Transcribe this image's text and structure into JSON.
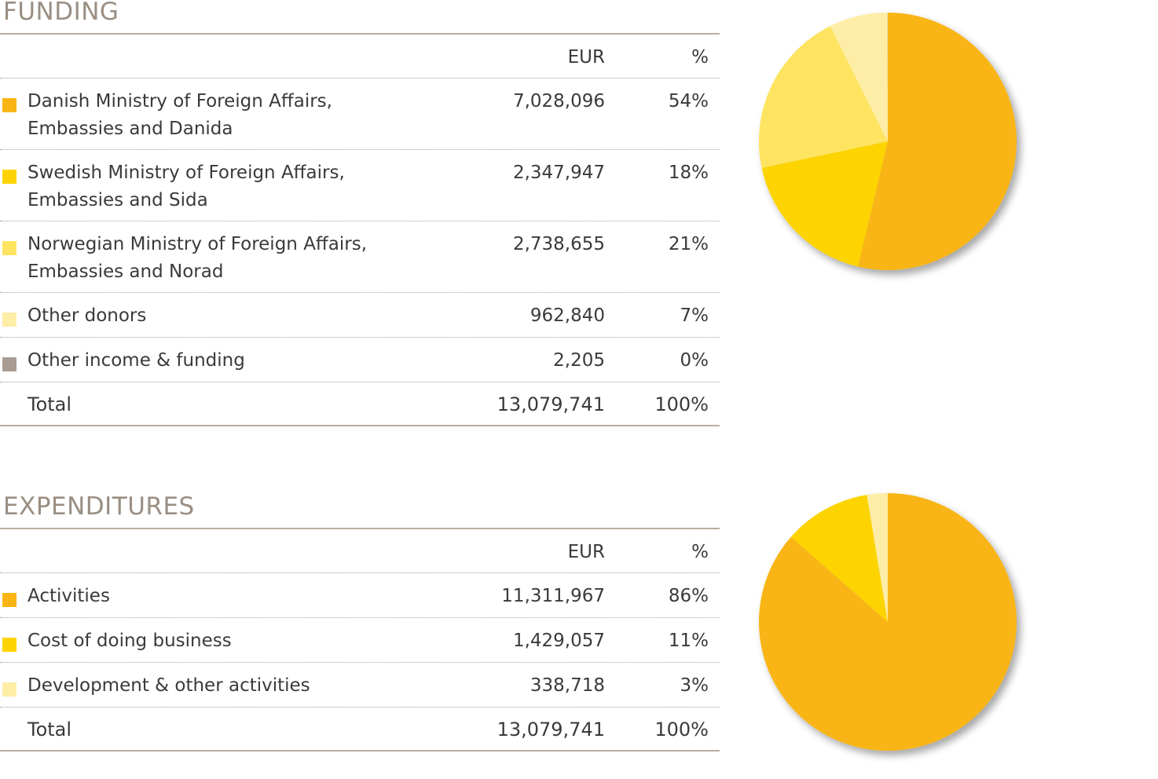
{
  "funding": {
    "title": "FUNDING",
    "headers": {
      "eur": "EUR",
      "pct": "%"
    },
    "rows": [
      {
        "label1": "Danish Ministry of Foreign Affairs,",
        "label2": "Embassies and Danida",
        "eur": "7,028,096",
        "pct": "54%",
        "color": "#f9b515"
      },
      {
        "label1": "Swedish Ministry of Foreign Affairs,",
        "label2": "Embassies and Sida",
        "eur": "2,347,947",
        "pct": "18%",
        "color": "#fdd401"
      },
      {
        "label1": "Norwegian Ministry of Foreign Affairs,",
        "label2": "Embassies and Norad",
        "eur": "2,738,655",
        "pct": "21%",
        "color": "#fee461"
      },
      {
        "label1": "Other donors",
        "eur": "962,840",
        "pct": "7%",
        "color": "#feeda6"
      },
      {
        "label1": "Other income & funding",
        "eur": "2,205",
        "pct": "0%",
        "color": "#a99c92"
      }
    ],
    "total": {
      "label": "Total",
      "eur": "13,079,741",
      "pct": "100%"
    }
  },
  "expenditures": {
    "title": "EXPENDITURES",
    "headers": {
      "eur": "EUR",
      "pct": "%"
    },
    "rows": [
      {
        "label1": "Activities",
        "eur": "11,311,967",
        "pct": "86%",
        "color": "#f9b515"
      },
      {
        "label1": "Cost of doing business",
        "eur": "1,429,057",
        "pct": "11%",
        "color": "#fdd401"
      },
      {
        "label1": "Development & other activities",
        "eur": "338,718",
        "pct": "3%",
        "color": "#feeda6"
      }
    ],
    "total": {
      "label": "Total",
      "eur": "13,079,741",
      "pct": "100%"
    }
  },
  "chart_data": [
    {
      "type": "pie",
      "title": "FUNDING",
      "categories": [
        "Danish Ministry of Foreign Affairs, Embassies and Danida",
        "Swedish Ministry of Foreign Affairs, Embassies and Sida",
        "Norwegian Ministry of Foreign Affairs, Embassies and Norad",
        "Other donors",
        "Other income & funding"
      ],
      "values": [
        7028096,
        2347947,
        2738655,
        962840,
        2205
      ],
      "colors": [
        "#f9b515",
        "#fdd401",
        "#fee461",
        "#feeda6",
        "#a99c92"
      ]
    },
    {
      "type": "pie",
      "title": "EXPENDITURES",
      "categories": [
        "Activities",
        "Cost of doing business",
        "Development & other activities"
      ],
      "values": [
        11311967,
        1429057,
        338718
      ],
      "colors": [
        "#f9b515",
        "#fdd401",
        "#feeda6"
      ]
    }
  ]
}
